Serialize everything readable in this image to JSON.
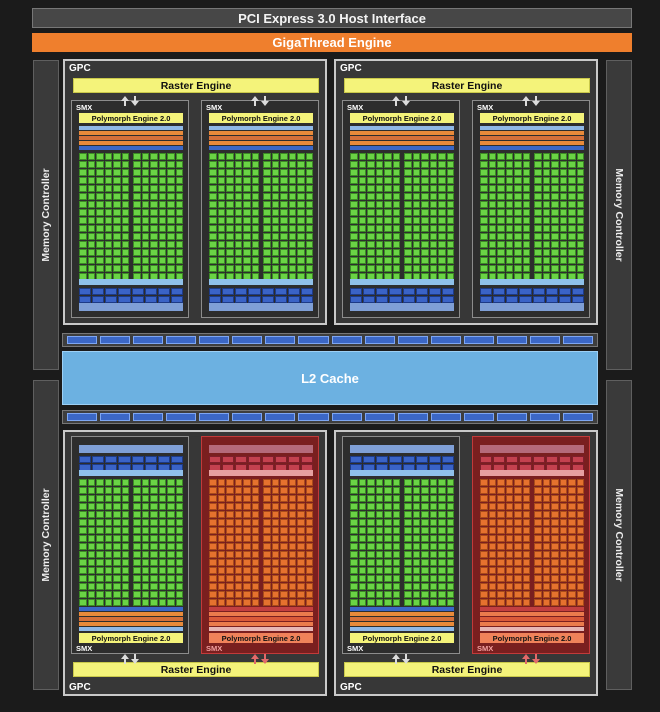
{
  "host_interface": "PCI Express 3.0 Host Interface",
  "gigathread": "GigaThread Engine",
  "memory_controller": "Memory Controller",
  "l2_cache": "L2 Cache",
  "gpc_label": "GPC",
  "raster_engine": "Raster Engine",
  "smx_label": "SMX",
  "polymorph": "Polymorph Engine 2.0",
  "layout": {
    "gpcs": [
      {
        "name": "gpc-top-left",
        "orientation": "top",
        "smx_disabled": [
          false,
          false
        ]
      },
      {
        "name": "gpc-top-right",
        "orientation": "top",
        "smx_disabled": [
          false,
          false
        ]
      },
      {
        "name": "gpc-bottom-left",
        "orientation": "bottom",
        "smx_disabled": [
          false,
          true
        ]
      },
      {
        "name": "gpc-bottom-right",
        "orientation": "bottom",
        "smx_disabled": [
          false,
          true
        ]
      }
    ]
  },
  "colors": {
    "enabled_core": "#6ad345",
    "disabled_smx": "#7a1f1f",
    "raster": "#f4f37a",
    "gigathread": "#ef7f2d",
    "l2": "#6cb1e1"
  }
}
